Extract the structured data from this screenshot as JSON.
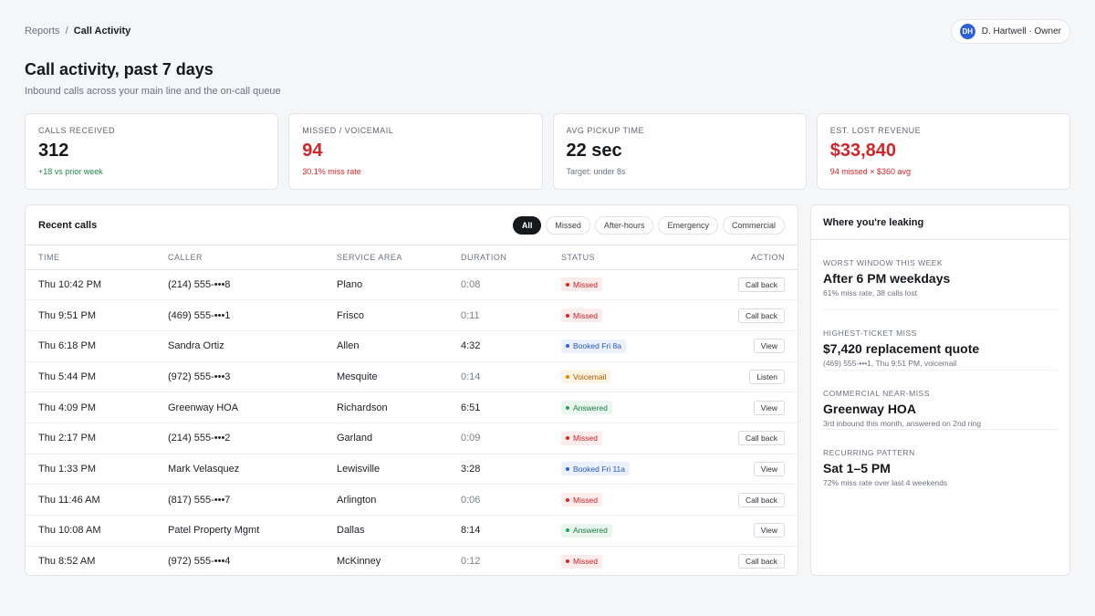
{
  "breadcrumb": {
    "parent": "Reports",
    "separator": "/",
    "current": "Call Activity"
  },
  "user": {
    "initials": "DH",
    "label": "D. Hartwell · Owner"
  },
  "header": {
    "title": "Call activity, past 7 days",
    "subtitle": "Inbound calls across your main line and the on-call queue"
  },
  "kpis": [
    {
      "label": "Calls received",
      "value": "312",
      "note": "+18 vs prior week"
    },
    {
      "label": "Missed / voicemail",
      "value": "94",
      "note": "30.1% miss rate"
    },
    {
      "label": "Avg pickup time",
      "value": "22 sec",
      "note": "Target: under 8s"
    },
    {
      "label": "Est. lost revenue",
      "value": "$33,840",
      "note": "94 missed × $360 avg"
    }
  ],
  "calls": {
    "title": "Recent calls",
    "filters": [
      "All",
      "Missed",
      "After-hours",
      "Emergency",
      "Commercial"
    ],
    "columns": [
      "Time",
      "Caller",
      "Service area",
      "Duration",
      "Status",
      "Action"
    ],
    "rows": [
      {
        "time": "Thu 10:42 PM",
        "caller": "(214) 555-•••8",
        "area": "Plano",
        "duration": "0:08",
        "status": "Missed",
        "action": "Call back"
      },
      {
        "time": "Thu 9:51 PM",
        "caller": "(469) 555-•••1",
        "area": "Frisco",
        "duration": "0:11",
        "status": "Missed",
        "action": "Call back"
      },
      {
        "time": "Thu 6:18 PM",
        "caller": "Sandra Ortiz",
        "area": "Allen",
        "duration": "4:32",
        "status": "Booked Fri 8a",
        "action": "View"
      },
      {
        "time": "Thu 5:44 PM",
        "caller": "(972) 555-•••3",
        "area": "Mesquite",
        "duration": "0:14",
        "status": "Voicemail",
        "action": "Listen"
      },
      {
        "time": "Thu 4:09 PM",
        "caller": "Greenway HOA",
        "area": "Richardson",
        "duration": "6:51",
        "status": "Answered",
        "action": "View"
      },
      {
        "time": "Thu 2:17 PM",
        "caller": "(214) 555-•••2",
        "area": "Garland",
        "duration": "0:09",
        "status": "Missed",
        "action": "Call back"
      },
      {
        "time": "Thu 1:33 PM",
        "caller": "Mark Velasquez",
        "area": "Lewisville",
        "duration": "3:28",
        "status": "Booked Fri 11a",
        "action": "View"
      },
      {
        "time": "Thu 11:46 AM",
        "caller": "(817) 555-•••7",
        "area": "Arlington",
        "duration": "0:06",
        "status": "Missed",
        "action": "Call back"
      },
      {
        "time": "Thu 10:08 AM",
        "caller": "Patel Property Mgmt",
        "area": "Dallas",
        "duration": "8:14",
        "status": "Answered",
        "action": "View"
      },
      {
        "time": "Thu 8:52 AM",
        "caller": "(972) 555-•••4",
        "area": "McKinney",
        "duration": "0:12",
        "status": "Missed",
        "action": "Call back"
      }
    ]
  },
  "leaking": {
    "title": "Where you're leaking",
    "items": [
      {
        "label": "Worst window this week",
        "title": "After 6 PM weekdays",
        "detail": "61% miss rate, 38 calls lost"
      },
      {
        "label": "Highest-ticket miss",
        "title": "$7,420 replacement quote",
        "detail": "(469) 555-•••1, Thu 9:51 PM, voicemail"
      },
      {
        "label": "Commercial near-miss",
        "title": "Greenway HOA",
        "detail": "3rd inbound this month, answered on 2nd ring"
      },
      {
        "label": "Recurring pattern",
        "title": "Sat 1–5 PM",
        "detail": "72% miss rate over last 4 weekends"
      }
    ]
  },
  "colors": {
    "accent": "#15181d",
    "danger": "#d2262b",
    "success": "#1f8a4c",
    "info": "#2f62d6",
    "warning": "#d98a00"
  }
}
